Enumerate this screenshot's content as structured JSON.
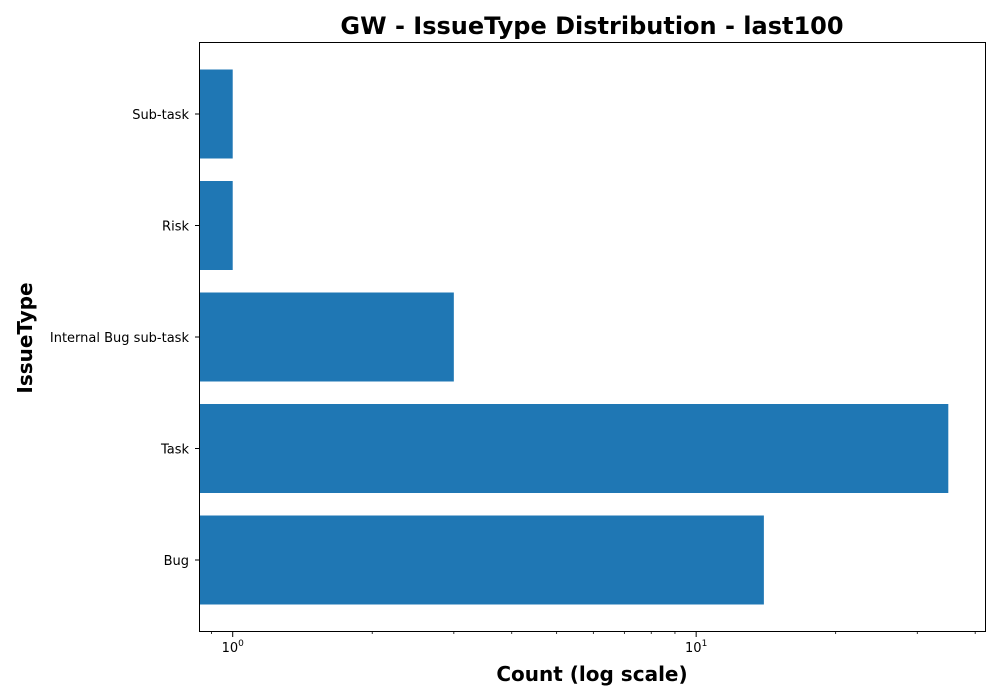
{
  "chart_data": {
    "type": "bar",
    "orientation": "horizontal",
    "title": "GW - IssueType Distribution - last100",
    "xlabel": "Count (log scale)",
    "ylabel": "IssueType",
    "xscale": "log",
    "xlim": [
      0.85,
      42
    ],
    "categories": [
      "Bug",
      "Task",
      "Internal Bug sub-task",
      "Risk",
      "Sub-task"
    ],
    "values": [
      14,
      35,
      3,
      1,
      1
    ],
    "x_ticks": [
      {
        "value": 1,
        "base": "10",
        "exp": "0"
      },
      {
        "value": 10,
        "base": "10",
        "exp": "1"
      }
    ],
    "bar_color": "#1f77b4",
    "grid": false,
    "legend": "none"
  }
}
